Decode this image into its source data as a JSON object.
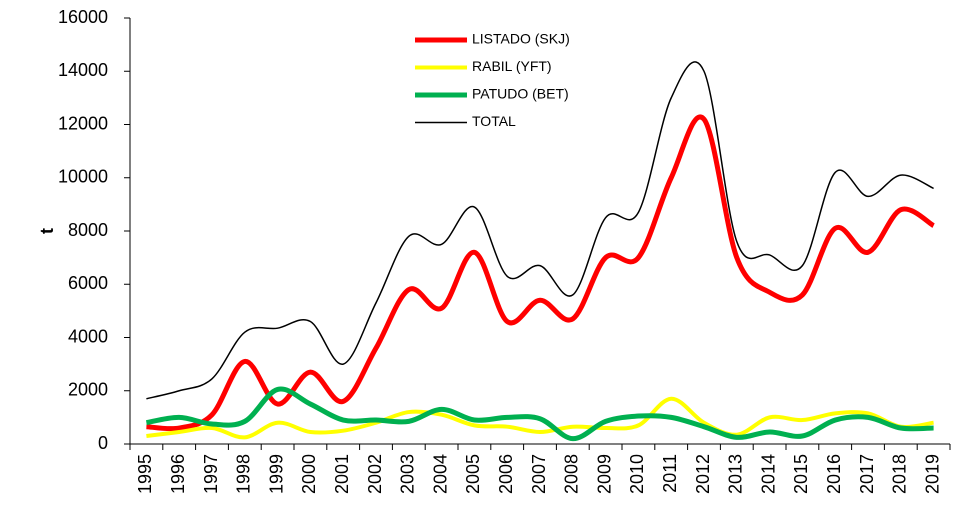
{
  "chart_data": {
    "type": "line",
    "y_label": "t",
    "categories": [
      "1995",
      "1996",
      "1997",
      "1998",
      "1999",
      "2000",
      "2001",
      "2002",
      "2003",
      "2004",
      "2005",
      "2006",
      "2007",
      "2008",
      "2009",
      "2010",
      "2011",
      "2012",
      "2013",
      "2014",
      "2015",
      "2016",
      "2017",
      "2018",
      "2019"
    ],
    "series": [
      {
        "name": "LISTADO (SKJ)",
        "color": "#ff0000",
        "width": 5,
        "values": [
          650,
          600,
          1100,
          3100,
          1500,
          2700,
          1600,
          3600,
          5800,
          5100,
          7200,
          4600,
          5400,
          4700,
          7000,
          7000,
          10000,
          12200,
          7000,
          5700,
          5600,
          8100,
          7200,
          8800,
          8200
        ]
      },
      {
        "name": "RABIL (YFT)",
        "color": "#ffff00",
        "width": 4,
        "values": [
          300,
          450,
          600,
          250,
          800,
          450,
          500,
          800,
          1200,
          1100,
          700,
          650,
          450,
          650,
          600,
          700,
          1700,
          800,
          350,
          1000,
          900,
          1150,
          1150,
          650,
          800
        ]
      },
      {
        "name": "PATUDO (BET)",
        "color": "#00b050",
        "width": 5,
        "values": [
          800,
          1000,
          750,
          850,
          2050,
          1500,
          900,
          900,
          850,
          1300,
          900,
          1000,
          950,
          200,
          850,
          1050,
          1000,
          650,
          250,
          450,
          300,
          900,
          1000,
          600,
          600
        ]
      },
      {
        "name": "TOTAL",
        "color": "#000000",
        "width": 1.5,
        "values": [
          1700,
          2000,
          2450,
          4200,
          4350,
          4600,
          3000,
          5300,
          7800,
          7500,
          8900,
          6300,
          6700,
          5600,
          8500,
          8700,
          13000,
          14000,
          7600,
          7100,
          6700,
          10200,
          9300,
          10100,
          9600
        ]
      }
    ],
    "ylim": [
      0,
      16000
    ],
    "yticks": [
      0,
      2000,
      4000,
      6000,
      8000,
      10000,
      12000,
      14000,
      16000
    ],
    "grid": false,
    "legend": "top"
  }
}
